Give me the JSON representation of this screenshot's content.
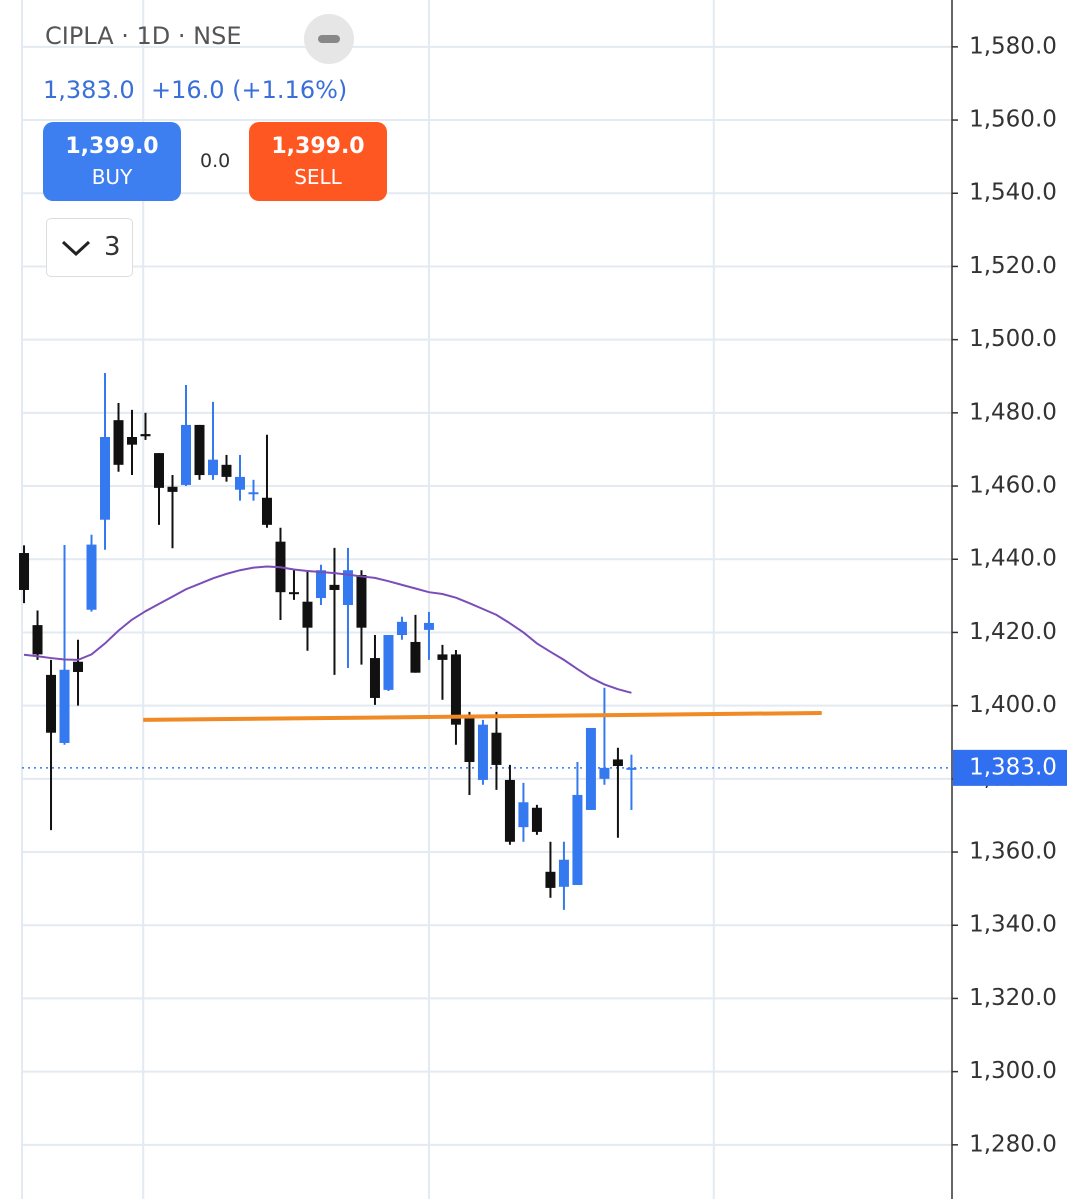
{
  "header": {
    "symbol": "CIPLA · 1D · NSE",
    "price": "1,383.0",
    "change": "+16.0 (+1.16%)",
    "buy": {
      "price": "1,399.0",
      "label": "BUY"
    },
    "spread": "0.0",
    "sell": {
      "price": "1,399.0",
      "label": "SELL"
    },
    "indicators": "3"
  },
  "chart_data": {
    "type": "candlestick",
    "categories": [
      null,
      null,
      null,
      null,
      null,
      null,
      null,
      null,
      null,
      null,
      null,
      null,
      null,
      null,
      null,
      null,
      null,
      null,
      null,
      null,
      null,
      null,
      null,
      null,
      null,
      null,
      null,
      null,
      null,
      null,
      null,
      null,
      null,
      null,
      null,
      null,
      null,
      null,
      null,
      null,
      null,
      null,
      null,
      null,
      null,
      null
    ],
    "open": [
      1441.7,
      1422,
      1408.4,
      1389.8,
      1412,
      1426.2,
      1450.8,
      1478,
      1473.4,
      1474.2,
      1469,
      1459.8,
      1460.3,
      1476.7,
      1463,
      1465.8,
      1459,
      1458,
      1456.8,
      1444.8,
      1431,
      1428.4,
      1429.4,
      1433,
      1427.5,
      1435.7,
      1413,
      1404.3,
      1419.3,
      1417.4,
      1420.7,
      1414,
      1414,
      1397.5,
      1379.7,
      1392.6,
      1379.7,
      1366.8,
      1372.1,
      1354.6,
      1350.5,
      1351,
      1371.5,
      1380,
      1385.3,
      1382.7
    ],
    "high": [
      1443.8,
      1426,
      1412.5,
      1443.9,
      1418,
      1446.7,
      1490.9,
      1482.7,
      1480.8,
      1480,
      1469,
      1463,
      1487.6,
      1476.7,
      1483,
      1468.5,
      1468.5,
      1461.7,
      1474,
      1448.6,
      1437,
      1437,
      1438.5,
      1443.1,
      1443.1,
      1437,
      1419.3,
      1419.3,
      1424.3,
      1424.8,
      1425.6,
      1416.6,
      1415.2,
      1398.3,
      1396.1,
      1398.3,
      1383.8,
      1378.9,
      1372.9,
      1362.8,
      1362.8,
      1384.6,
      1393.9,
      1404.9,
      1388.5,
      1386.6
    ],
    "low": [
      1428,
      1412.5,
      1366,
      1389.3,
      1400,
      1425.7,
      1442.6,
      1463.9,
      1463,
      1472.6,
      1449.4,
      1443,
      1460,
      1461.7,
      1461.7,
      1461.2,
      1456,
      1456,
      1448.6,
      1423.4,
      1428.9,
      1415,
      1427.5,
      1408.4,
      1410.3,
      1411.2,
      1400.2,
      1404,
      1418,
      1409,
      1412.5,
      1401.6,
      1389.3,
      1375.6,
      1378.4,
      1377,
      1362,
      1362.8,
      1364.7,
      1347.5,
      1344.2,
      1351,
      1371.5,
      1378.4,
      1363.9,
      1371.5
    ],
    "close": [
      1431.6,
      1414,
      1392.6,
      1409.8,
      1409.2,
      1444,
      1473.4,
      1465.8,
      1471.3,
      1473.6,
      1459.5,
      1458.4,
      1476.7,
      1463,
      1467.2,
      1462.5,
      1462.5,
      1458.3,
      1449.4,
      1431,
      1430.6,
      1421.3,
      1437,
      1431.6,
      1437,
      1421.3,
      1402.1,
      1419.3,
      1422.9,
      1409,
      1422.6,
      1412.5,
      1394.8,
      1384.6,
      1394.8,
      1383.8,
      1362.8,
      1373.6,
      1365.5,
      1350.2,
      1357.9,
      1375.6,
      1393.9,
      1383,
      1383.5,
      1383.0
    ],
    "up_color": "#3479f0",
    "down_color": "#111111",
    "ma": {
      "color": "#7b4db8",
      "values": [
        1413.9,
        1413.5,
        1413,
        1412.6,
        1412.5,
        1414,
        1417,
        1420.5,
        1423.5,
        1425.8,
        1427.8,
        1429.8,
        1431.8,
        1433.3,
        1434.8,
        1436,
        1437,
        1437.7,
        1438,
        1437.8,
        1437.2,
        1436.8,
        1436.5,
        1436.2,
        1435.8,
        1435.3,
        1434.9,
        1434,
        1433,
        1432,
        1431,
        1430.5,
        1429.5,
        1428,
        1426.4,
        1424.8,
        1422.5,
        1420,
        1417,
        1414.7,
        1412.5,
        1410,
        1407.6,
        1405.8,
        1404.5,
        1403.5
      ]
    },
    "trendline": {
      "color": "#f08a24",
      "x": [
        8.83,
        59.1
      ],
      "y": [
        1396.1,
        1398.0
      ]
    },
    "last_price": {
      "value": 1383.0,
      "label": "1,383.0"
    },
    "xlim": [
      -0.15,
      68.75
    ],
    "xticks": [
      8.83,
      30.0,
      51.1
    ],
    "ylim": [
      1265.2,
      1592.8
    ],
    "yticks": [
      {
        "value": 1280,
        "label": "1,280.0"
      },
      {
        "value": 1300,
        "label": "1,300.0"
      },
      {
        "value": 1320,
        "label": "1,320.0"
      },
      {
        "value": 1340,
        "label": "1,340.0"
      },
      {
        "value": 1360,
        "label": "1,360.0"
      },
      {
        "value": 1380,
        "label": "1,380.0"
      },
      {
        "value": 1400,
        "label": "1,400.0"
      },
      {
        "value": 1420,
        "label": "1,420.0"
      },
      {
        "value": 1440,
        "label": "1,440.0"
      },
      {
        "value": 1460,
        "label": "1,460.0"
      },
      {
        "value": 1480,
        "label": "1,480.0"
      },
      {
        "value": 1500,
        "label": "1,500.0"
      },
      {
        "value": 1520,
        "label": "1,520.0"
      },
      {
        "value": 1540,
        "label": "1,540.0"
      },
      {
        "value": 1560,
        "label": "1,560.0"
      },
      {
        "value": 1580,
        "label": "1,580.0"
      }
    ],
    "grid": true
  }
}
